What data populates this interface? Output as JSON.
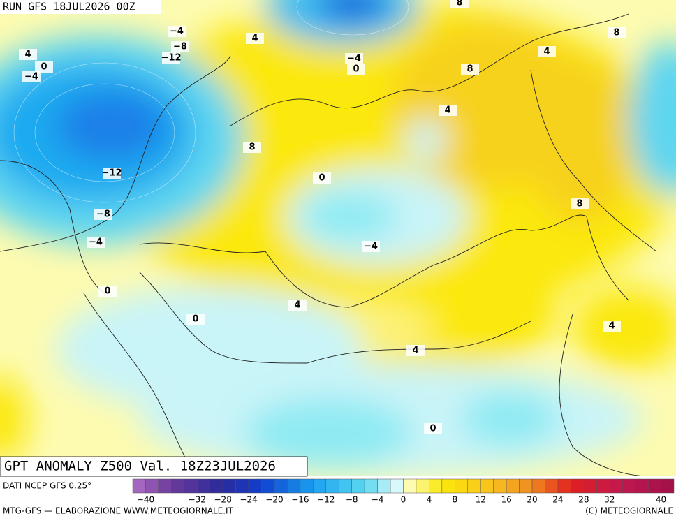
{
  "header": {
    "run": "RUN GFS 18JUL2026 00Z"
  },
  "title": "GPT ANOMALY Z500 Val. 18Z23JUL2026",
  "source": "DATI NCEP GFS 0.25°",
  "footer": {
    "left": "MTG-GFS — ELABORAZIONE WWW.METEOGIORNALE.IT",
    "right": "(C) METEOGIORNALE"
  },
  "colorbar": {
    "ticks": [
      "−40",
      "−32",
      "−28",
      "−24",
      "−20",
      "−16",
      "−12",
      "−8",
      "−4",
      "0",
      "4",
      "8",
      "12",
      "16",
      "20",
      "24",
      "28",
      "32",
      "40"
    ]
  },
  "contour_labels": [
    "−4",
    "−8",
    "−12",
    "4",
    "0",
    "−4",
    "4",
    "−4",
    "0",
    "8",
    "8",
    "4",
    "8",
    "4",
    "8",
    "0",
    "−12",
    "−8",
    "−4",
    "8",
    "−4",
    "0",
    "4",
    "0",
    "4",
    "4",
    "0"
  ]
}
